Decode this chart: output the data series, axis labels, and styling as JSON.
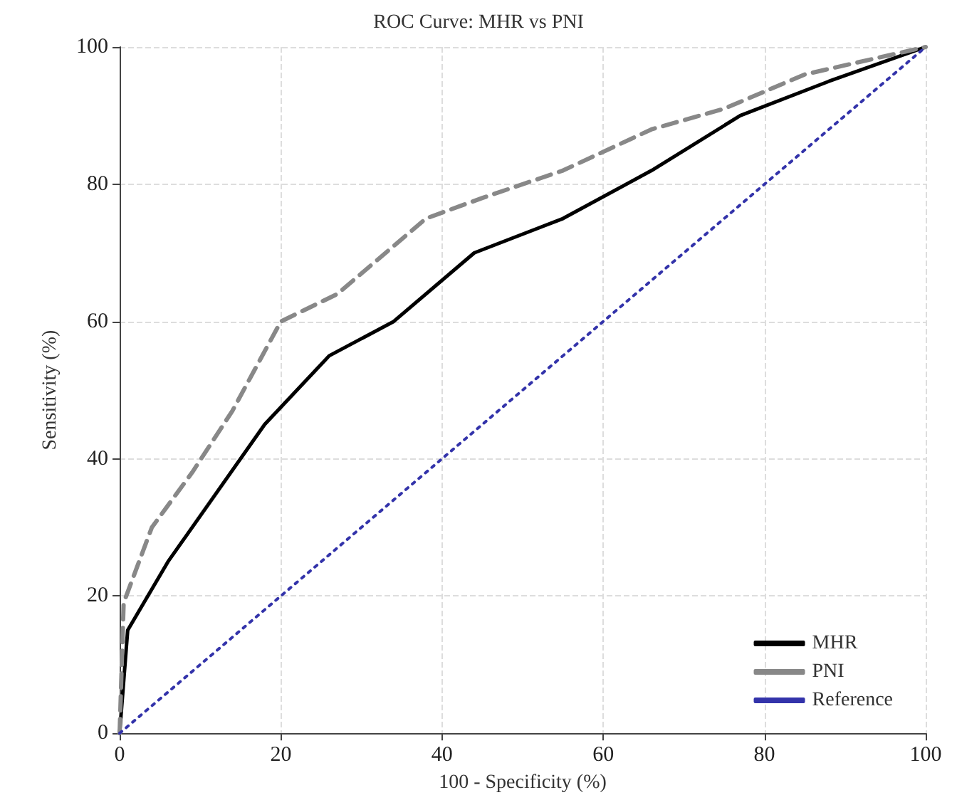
{
  "chart_data": {
    "type": "line",
    "title": "ROC Curve: MHR vs PNI",
    "xlabel": "100 - Specificity (%)",
    "ylabel": "Sensitivity (%)",
    "xlim": [
      0,
      100
    ],
    "ylim": [
      0,
      100
    ],
    "xticks": [
      0,
      20,
      40,
      60,
      80,
      100
    ],
    "yticks": [
      0,
      20,
      40,
      60,
      80,
      100
    ],
    "grid": true,
    "legend": "bottom right",
    "marker": "none",
    "series": [
      {
        "name": "MHR",
        "color": "#000000",
        "line_style": "solid",
        "x": [
          0,
          1,
          6,
          18,
          26,
          34,
          44,
          55,
          66,
          77,
          88,
          100
        ],
        "values": [
          0,
          15,
          25,
          45,
          55,
          60,
          70,
          75,
          82,
          90,
          95,
          100
        ]
      },
      {
        "name": "PNI",
        "color": "#888888",
        "line_style": "dashed",
        "x": [
          0,
          0.5,
          4,
          9,
          14,
          20,
          27,
          38,
          45,
          55,
          66,
          75,
          85,
          100
        ],
        "values": [
          0,
          19,
          30,
          38,
          47,
          60,
          64,
          75,
          78,
          82,
          88,
          91,
          96,
          100
        ]
      },
      {
        "name": "Reference",
        "color": "#3333aa",
        "line_style": "dotted",
        "x": [
          0,
          100
        ],
        "values": [
          0,
          100
        ]
      }
    ]
  }
}
